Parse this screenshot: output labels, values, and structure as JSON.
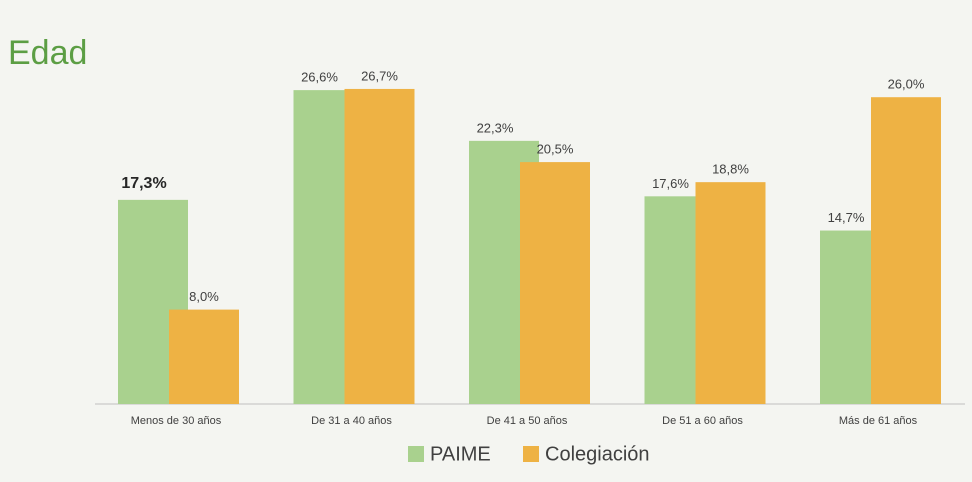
{
  "chart_data": {
    "type": "bar",
    "title": "Edad",
    "categories": [
      "Menos de 30 años",
      "De 31 a 40 años",
      "De 41 a 50 años",
      "De 51 a 60 años",
      "Más de 61 años"
    ],
    "series": [
      {
        "name": "PAIME",
        "color": "#a9d18e",
        "values": [
          17.3,
          26.6,
          22.3,
          17.6,
          14.7
        ],
        "value_labels": [
          "17,3%",
          "26,6%",
          "22,3%",
          "17,6%",
          "14,7%"
        ]
      },
      {
        "name": "Colegiación",
        "color": "#eeb244",
        "values": [
          8.0,
          26.7,
          20.5,
          18.8,
          26.0
        ],
        "value_labels": [
          "8,0%",
          "26,7%",
          "20,5%",
          "18,8%",
          "26,0%"
        ]
      }
    ]
  }
}
